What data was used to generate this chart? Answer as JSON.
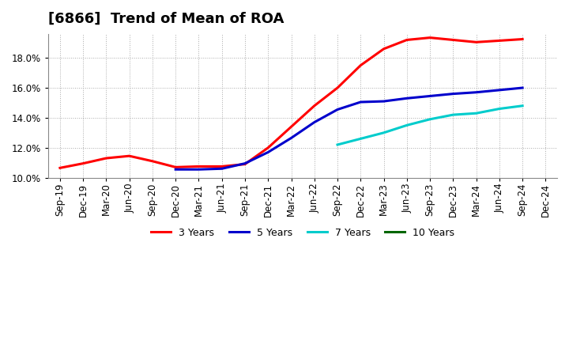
{
  "title": "[6866]  Trend of Mean of ROA",
  "background_color": "#ffffff",
  "plot_background_color": "#ffffff",
  "grid_color": "#aaaaaa",
  "ylim": [
    0.1,
    0.196
  ],
  "yticks": [
    0.1,
    0.12,
    0.14,
    0.16,
    0.18
  ],
  "xtick_labels": [
    "Sep-19",
    "Dec-19",
    "Mar-20",
    "Jun-20",
    "Sep-20",
    "Dec-20",
    "Mar-21",
    "Jun-21",
    "Sep-21",
    "Dec-21",
    "Mar-22",
    "Jun-22",
    "Sep-22",
    "Dec-22",
    "Mar-23",
    "Jun-23",
    "Sep-23",
    "Dec-23",
    "Mar-24",
    "Jun-24",
    "Sep-24",
    "Dec-24"
  ],
  "series": {
    "3 Years": {
      "color": "#ff0000",
      "x": [
        "Sep-19",
        "Dec-19",
        "Mar-20",
        "Jun-20",
        "Sep-20",
        "Dec-20",
        "Mar-21",
        "Jun-21",
        "Sep-21",
        "Dec-21",
        "Mar-22",
        "Jun-22",
        "Sep-22",
        "Dec-22",
        "Mar-23",
        "Jun-23",
        "Sep-23",
        "Dec-23",
        "Mar-24",
        "Jun-24",
        "Sep-24"
      ],
      "y": [
        0.1065,
        0.1095,
        0.113,
        0.1145,
        0.111,
        0.107,
        0.1075,
        0.1075,
        0.109,
        0.12,
        0.134,
        0.148,
        0.16,
        0.175,
        0.186,
        0.192,
        0.1935,
        0.192,
        0.1905,
        0.1915,
        0.1925
      ]
    },
    "5 Years": {
      "color": "#0000cc",
      "x": [
        "Dec-20",
        "Mar-21",
        "Jun-21",
        "Sep-21",
        "Dec-21",
        "Mar-22",
        "Jun-22",
        "Sep-22",
        "Dec-22",
        "Mar-23",
        "Jun-23",
        "Sep-23",
        "Dec-23",
        "Mar-24",
        "Jun-24",
        "Sep-24"
      ],
      "y": [
        0.1055,
        0.1055,
        0.106,
        0.1095,
        0.117,
        0.1265,
        0.137,
        0.1455,
        0.1505,
        0.151,
        0.153,
        0.1545,
        0.156,
        0.157,
        0.1585,
        0.16
      ]
    },
    "7 Years": {
      "color": "#00cccc",
      "x": [
        "Sep-22",
        "Dec-22",
        "Mar-23",
        "Jun-23",
        "Sep-23",
        "Dec-23",
        "Mar-24",
        "Jun-24",
        "Sep-24"
      ],
      "y": [
        0.122,
        0.126,
        0.13,
        0.135,
        0.139,
        0.142,
        0.143,
        0.146,
        0.148
      ]
    },
    "10 Years": {
      "color": "#006600",
      "x": [],
      "y": []
    }
  },
  "legend_items": [
    "3 Years",
    "5 Years",
    "7 Years",
    "10 Years"
  ],
  "legend_colors": [
    "#ff0000",
    "#0000cc",
    "#00cccc",
    "#006600"
  ],
  "title_fontsize": 13,
  "tick_fontsize": 8.5,
  "legend_fontsize": 9,
  "linewidth": 2.2
}
